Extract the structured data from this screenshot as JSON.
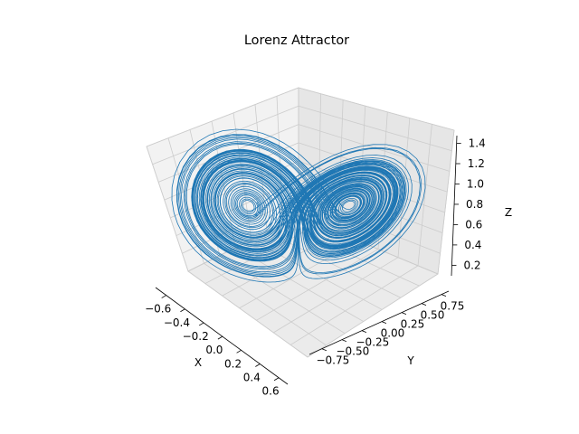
{
  "chart_data": {
    "type": "line3d",
    "title": "Lorenz Attractor",
    "xlabel": "X",
    "ylabel": "Y",
    "zlabel": "Z",
    "xlim": [
      -0.7,
      0.7
    ],
    "ylim": [
      -0.9,
      0.9
    ],
    "zlim": [
      0.1,
      1.5
    ],
    "xticks": [
      "−0.6",
      "−0.4",
      "−0.2",
      "0.0",
      "0.2",
      "0.4",
      "0.6"
    ],
    "yticks": [
      "−0.75",
      "−0.50",
      "−0.25",
      "0.00",
      "0.25",
      "0.50",
      "0.75"
    ],
    "zticks": [
      "0.2",
      "0.4",
      "0.6",
      "0.8",
      "1.0",
      "1.2",
      "1.4"
    ],
    "line_color": "#1f77b4",
    "grid": true,
    "pane_color": "#f2f2f2",
    "grid_color": "#cccccc",
    "series": [
      {
        "values": "Lorenz system trajectory (sigma=10, rho=28, beta=8/3), normalized so X,Y span about -0.65..0.65 and Z spans about 0.15..1.45"
      }
    ]
  }
}
